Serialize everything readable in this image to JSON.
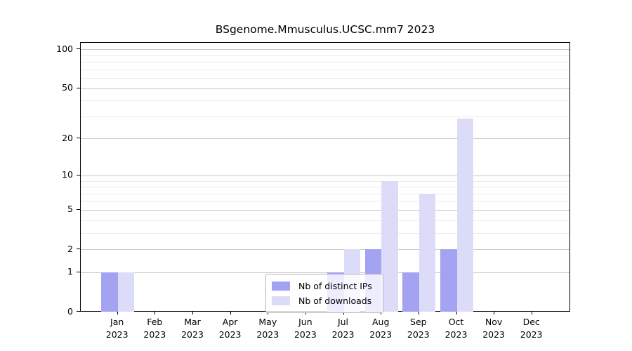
{
  "chart_data": {
    "type": "bar",
    "title": "BSgenome.Mmusculus.UCSC.mm7 2023",
    "categories": [
      "Jan",
      "Feb",
      "Mar",
      "Apr",
      "May",
      "Jun",
      "Jul",
      "Aug",
      "Sep",
      "Oct",
      "Nov",
      "Dec"
    ],
    "year": "2023",
    "series": [
      {
        "name": "Nb of distinct IPs",
        "color": "#a3a3f2",
        "values": [
          1,
          0,
          0,
          0,
          0,
          0,
          1,
          2,
          1,
          2,
          0,
          0
        ]
      },
      {
        "name": "Nb of downloads",
        "color": "#dcdcf8",
        "values": [
          1,
          0,
          0,
          0,
          0,
          0,
          2,
          9,
          7,
          29,
          0,
          0
        ]
      }
    ],
    "yscale": "log1p",
    "yticks": [
      0,
      1,
      2,
      5,
      10,
      20,
      50,
      100
    ],
    "minor_gridlines": [
      3,
      4,
      6,
      7,
      8,
      9,
      30,
      40,
      60,
      70,
      80,
      90
    ],
    "ylim": [
      0,
      115
    ],
    "grid": "on",
    "legend_position": "inside-bottom-center",
    "colors": {
      "axis": "#000000",
      "major_grid": "#c8c8c8",
      "minor_grid": "#ebebeb"
    }
  }
}
